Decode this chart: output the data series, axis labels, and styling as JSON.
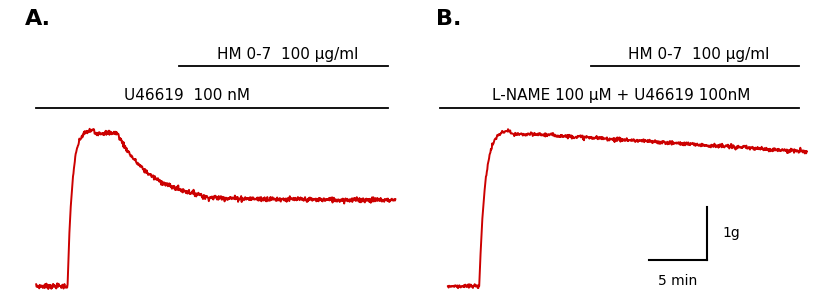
{
  "panel_A_label": "A.",
  "panel_B_label": "B.",
  "line_color": "#cc0000",
  "background_color": "#ffffff",
  "label_A_top": "HM 0-7  100 μg/ml",
  "label_A_bottom": "U46619  100 nM",
  "label_B_top": "HM 0-7  100 μg/ml",
  "label_B_bottom": "L-NAME 100 μM + U46619 100nM",
  "scalebar_y": "1g",
  "scalebar_x": "5 min",
  "font_size_label": 11,
  "font_size_panel": 16,
  "font_size_scale": 10,
  "trace_noise_A": 0.008,
  "trace_noise_B": 0.006
}
